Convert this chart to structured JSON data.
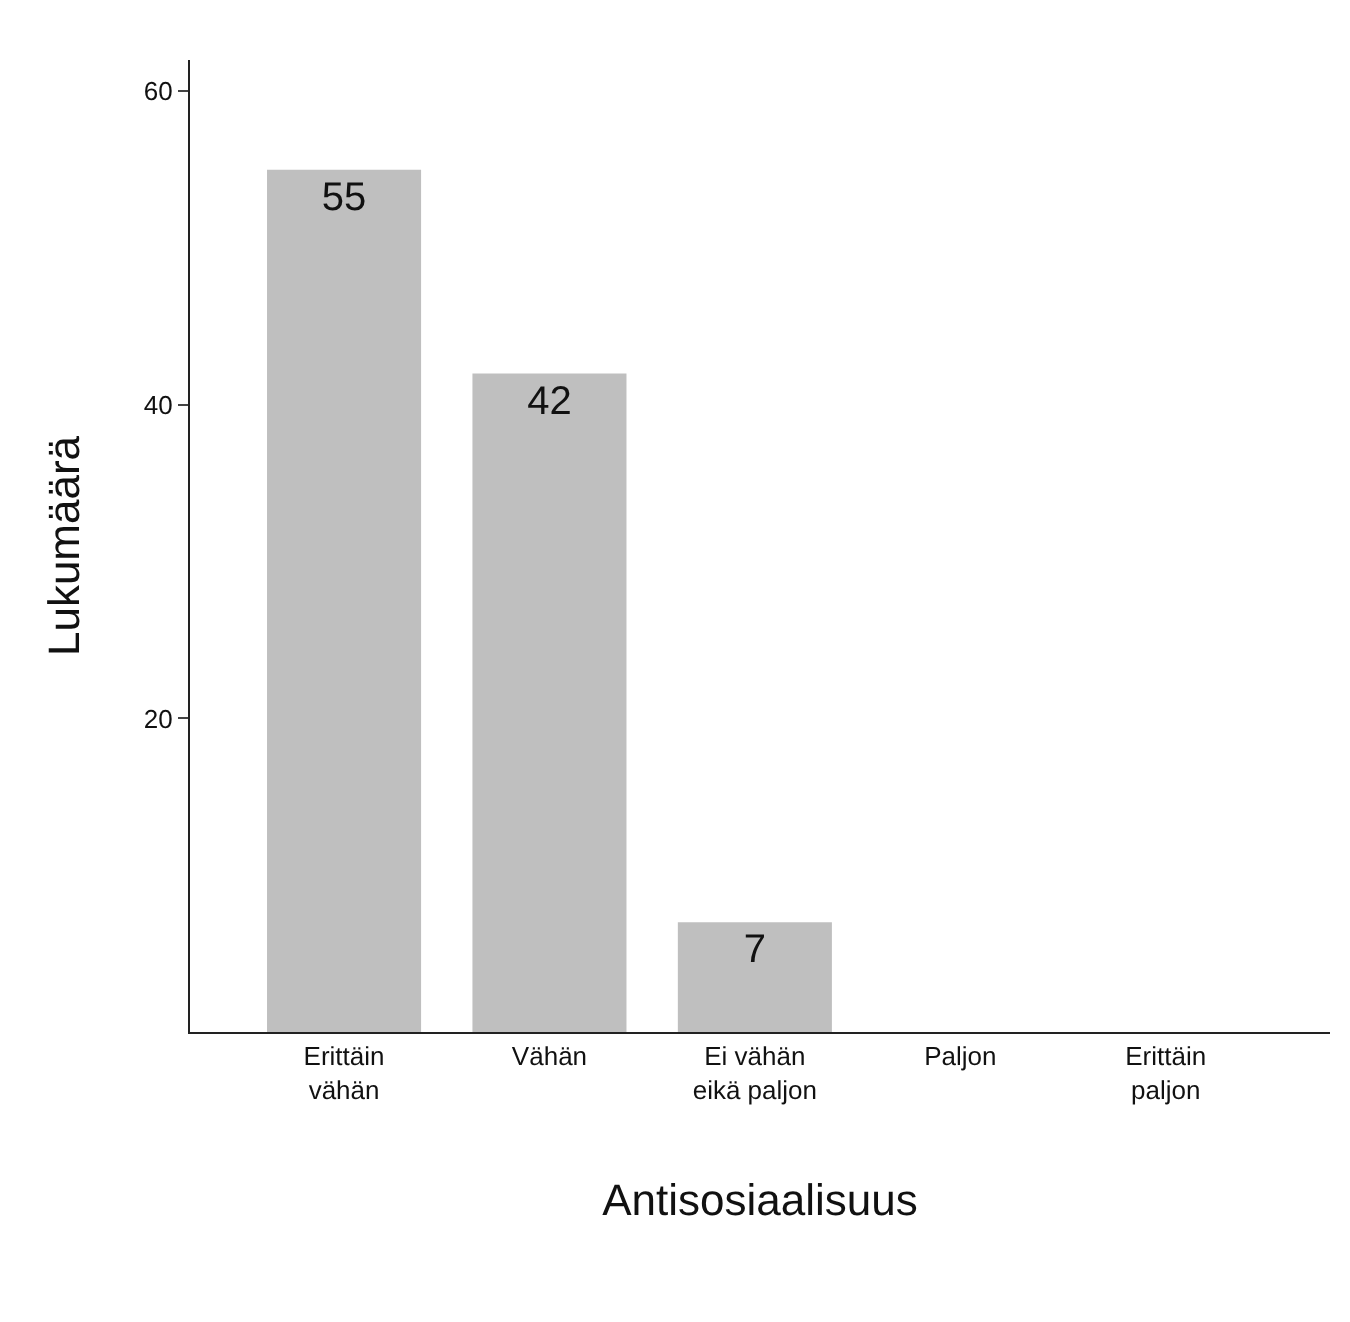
{
  "chart_data": {
    "type": "bar",
    "xlabel": "Antisosiaalisuus",
    "ylabel": "Lukumäärä",
    "categories": [
      "Erittäin\nvähän",
      "Vähän",
      "Ei vähän\neikä paljon",
      "Paljon",
      "Erittäin\npaljon"
    ],
    "values": [
      55,
      42,
      7,
      0,
      0
    ],
    "value_labels": [
      "55",
      "42",
      "7",
      null,
      null
    ],
    "color": "#bfbfbf",
    "ylim": [
      0,
      62
    ],
    "yticks": [
      20,
      40,
      60
    ],
    "legend": false
  }
}
